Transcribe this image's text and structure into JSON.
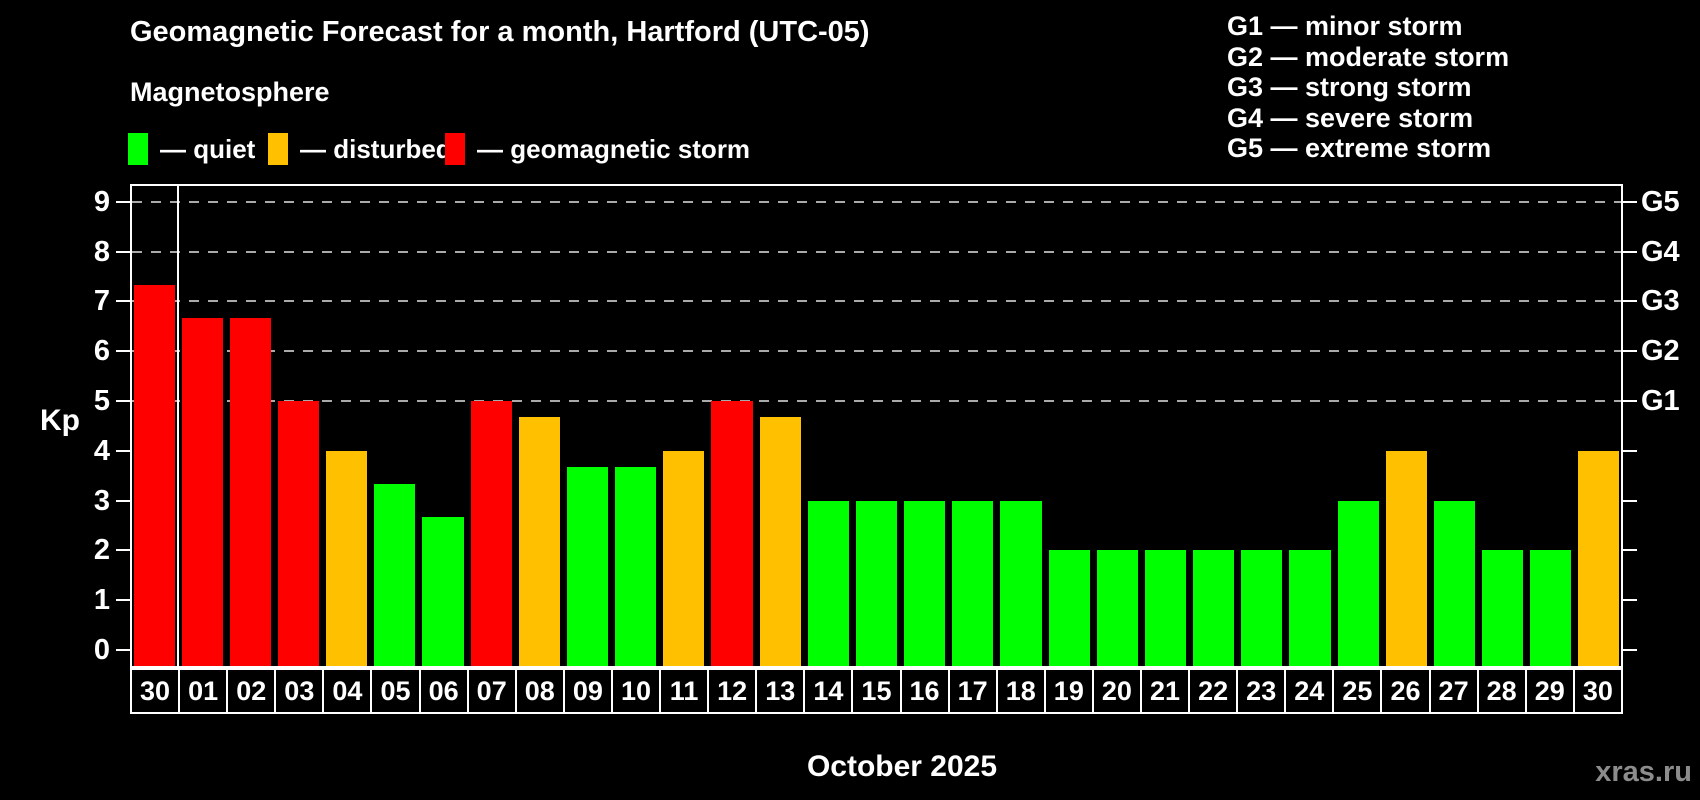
{
  "title": "Geomagnetic Forecast for a month, Hartford (UTC-05)",
  "subtitle": "Magnetosphere",
  "legend": {
    "quiet": "— quiet",
    "disturbed": "— disturbed",
    "storm": "— geomagnetic storm"
  },
  "g_legend": [
    "G1 — minor storm",
    "G2 — moderate storm",
    "G3 — strong storm",
    "G4 — severe storm",
    "G5 — extreme storm"
  ],
  "axis": {
    "y_label": "Kp",
    "y_ticks": [
      "0",
      "1",
      "2",
      "3",
      "4",
      "5",
      "6",
      "7",
      "8",
      "9"
    ],
    "right_ticks": [
      {
        "kp": 5,
        "label": "G1"
      },
      {
        "kp": 6,
        "label": "G2"
      },
      {
        "kp": 7,
        "label": "G3"
      },
      {
        "kp": 8,
        "label": "G4"
      },
      {
        "kp": 9,
        "label": "G5"
      }
    ],
    "grid_levels": [
      5,
      6,
      7,
      8,
      9
    ],
    "x_label": "October 2025"
  },
  "watermark": "xras.ru",
  "colors": {
    "quiet": "#00ff00",
    "disturbed": "#ffc000",
    "storm": "#ff0000",
    "background": "#000000",
    "text": "#ffffff",
    "grid": "#aaaaaa",
    "frame": "#ffffff",
    "watermark": "#8c8c8c"
  },
  "chart_data": {
    "type": "bar",
    "categories": [
      "30",
      "01",
      "02",
      "03",
      "04",
      "05",
      "06",
      "07",
      "08",
      "09",
      "10",
      "11",
      "12",
      "13",
      "14",
      "15",
      "16",
      "17",
      "18",
      "19",
      "20",
      "21",
      "22",
      "23",
      "24",
      "25",
      "26",
      "27",
      "28",
      "29",
      "30"
    ],
    "values": [
      7.33,
      6.67,
      6.67,
      5,
      4,
      3.33,
      2.67,
      5,
      4.67,
      3.67,
      3.67,
      4,
      5,
      4.67,
      3,
      3,
      3,
      3,
      3,
      2,
      2,
      2,
      2,
      2,
      2,
      3,
      4,
      3,
      2,
      2,
      4
    ],
    "thresholds": {
      "disturbed_min": 4,
      "storm_min": 5
    },
    "divider_after_index": 0,
    "ylim": [
      0,
      9
    ],
    "grid": "dashed-horizontal-at-storm-levels",
    "legend_position": "top"
  }
}
